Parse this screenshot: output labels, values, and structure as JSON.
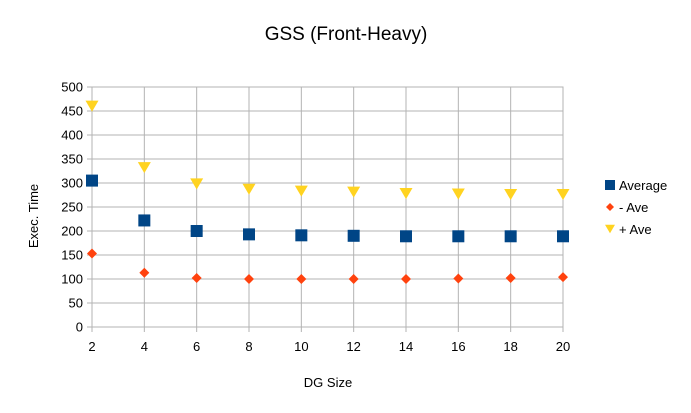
{
  "chart_data": {
    "type": "scatter",
    "title": "GSS (Front-Heavy)",
    "xlabel": "DG Size",
    "ylabel": "Exec. Time",
    "x": [
      2,
      4,
      6,
      8,
      10,
      12,
      14,
      16,
      18,
      20
    ],
    "xlim": [
      2,
      20
    ],
    "ylim": [
      0,
      500
    ],
    "xticks": [
      2,
      4,
      6,
      8,
      10,
      12,
      14,
      16,
      18,
      20
    ],
    "yticks": [
      0,
      50,
      100,
      150,
      200,
      250,
      300,
      350,
      400,
      450,
      500
    ],
    "grid": true,
    "legend_position": "right",
    "series": [
      {
        "name": "Average",
        "marker": "square",
        "color": "#004586",
        "values": [
          305,
          222,
          200,
          193,
          191,
          190,
          189,
          189,
          189,
          189
        ]
      },
      {
        "name": "- Ave",
        "marker": "diamond",
        "color": "#ff420e",
        "values": [
          153,
          113,
          102,
          100,
          100,
          100,
          100,
          101,
          102,
          104
        ]
      },
      {
        "name": "+ Ave",
        "marker": "triangle-down",
        "color": "#ffd320",
        "values": [
          460,
          332,
          298,
          287,
          283,
          281,
          278,
          277,
          276,
          276
        ]
      }
    ]
  }
}
